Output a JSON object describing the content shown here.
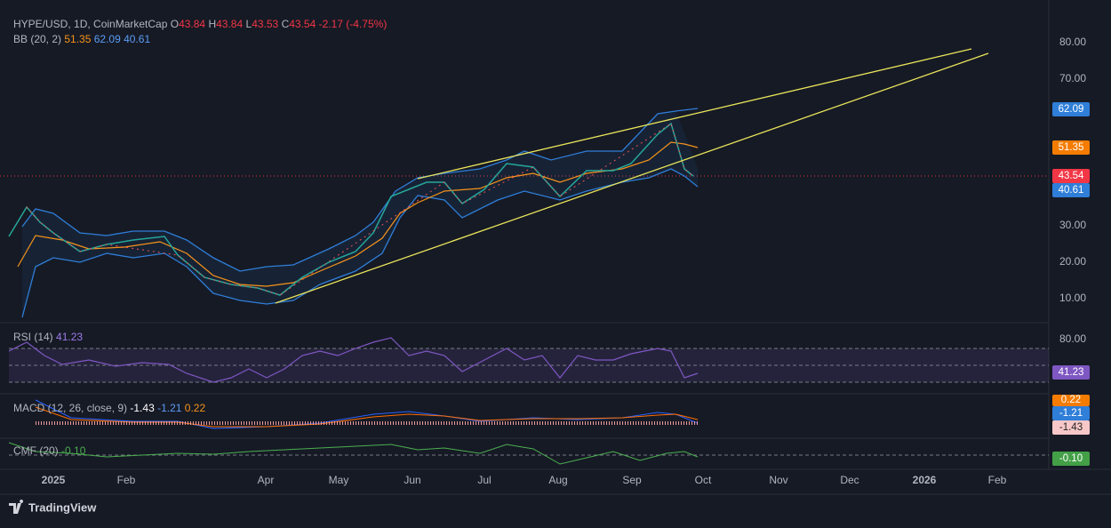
{
  "header": {
    "symbol": "HYPE/USD, 1D, CoinMarketCap",
    "ohlc": [
      {
        "label": "O",
        "value": "43.84"
      },
      {
        "label": "H",
        "value": "43.84"
      },
      {
        "label": "L",
        "value": "43.53"
      },
      {
        "label": "C",
        "value": "43.54"
      }
    ],
    "change": "-2.17 (-4.75%)"
  },
  "bb": {
    "label": "BB (20, 2)",
    "values": [
      "51.35",
      "62.09",
      "40.61"
    ]
  },
  "price_axis": [
    "80.00",
    "70.00",
    "30.00",
    "20.00",
    "10.00"
  ],
  "price_badges": [
    "62.09",
    "51.35",
    "43.54",
    "40.61"
  ],
  "rsi": {
    "label": "RSI (14)",
    "value": "41.23",
    "axis": "80.00",
    "badge": "41.23"
  },
  "macd": {
    "label": "MACD (12, 26, close, 9)",
    "values": [
      "-1.43",
      "-1.21",
      "0.22"
    ],
    "badges": [
      "0.22",
      "-1.21",
      "-1.43"
    ]
  },
  "cmf": {
    "label": "CMF (20)",
    "value": "-0.10",
    "badge": "-0.10"
  },
  "time_axis": [
    "2025",
    "Feb",
    "Apr",
    "May",
    "Jun",
    "Jul",
    "Aug",
    "Sep",
    "Oct",
    "Nov",
    "Dec",
    "2026",
    "Feb"
  ],
  "footer": "TradingView"
}
